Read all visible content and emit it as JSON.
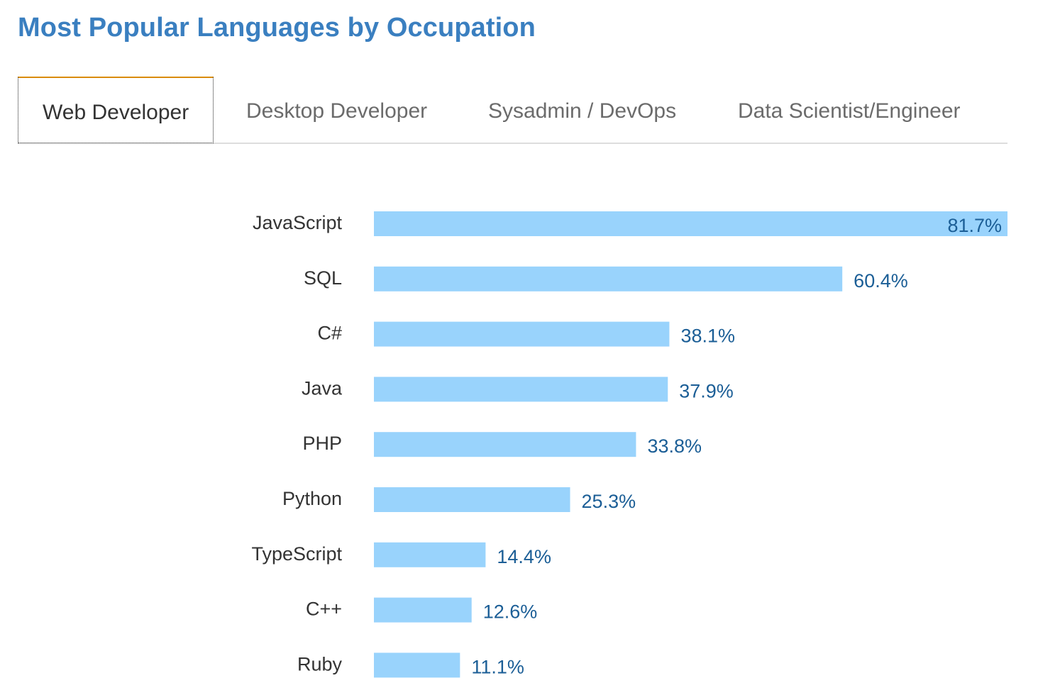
{
  "title": "Most Popular Languages by Occupation",
  "colors": {
    "title": "#3a7fc0",
    "bar": "#99d3fc",
    "value_label": "#1b5e96",
    "active_tab_top": "#d98b00"
  },
  "tabs": [
    {
      "label": "Web Developer",
      "active": true
    },
    {
      "label": "Desktop Developer",
      "active": false
    },
    {
      "label": "Sysadmin / DevOps",
      "active": false
    },
    {
      "label": "Data Scientist/Engineer",
      "active": false
    }
  ],
  "chart_data": {
    "type": "bar",
    "orientation": "horizontal",
    "categories": [
      "JavaScript",
      "SQL",
      "C#",
      "Java",
      "PHP",
      "Python",
      "TypeScript",
      "C++",
      "Ruby"
    ],
    "values": [
      81.7,
      60.4,
      38.1,
      37.9,
      33.8,
      25.3,
      14.4,
      12.6,
      11.1
    ],
    "value_labels": [
      "81.7%",
      "60.4%",
      "38.1%",
      "37.9%",
      "33.8%",
      "25.3%",
      "14.4%",
      "12.6%",
      "11.1%"
    ],
    "xlim": [
      0,
      81.7
    ],
    "grid": false,
    "legend": "none"
  }
}
